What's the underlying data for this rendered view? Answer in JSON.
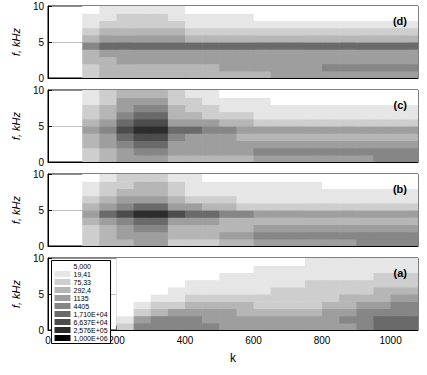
{
  "chart_data": [
    {
      "type": "heatmap",
      "title": "(d)",
      "ylabel": "f, kHz",
      "grid": true,
      "tick_labels": "y",
      "xlim": [
        0,
        1080
      ],
      "xticks": [
        0,
        200,
        400,
        600,
        800,
        1000
      ],
      "ylim": [
        0,
        10
      ],
      "yticks": [
        0,
        5,
        10
      ],
      "x": [
        25,
        75,
        125,
        175,
        225,
        275,
        325,
        375,
        425,
        475,
        525,
        575,
        625,
        675,
        725,
        775,
        825,
        875,
        925,
        975,
        1025,
        1075
      ],
      "y": [
        0.5,
        1.5,
        2.5,
        3.5,
        4.5,
        5.5,
        6.5,
        7.5,
        8.5,
        9.5
      ],
      "z": [
        [
          null,
          null,
          75.33,
          292.4,
          292.4,
          292.4,
          292.4,
          292.4,
          292.4,
          292.4,
          292.4,
          292.4,
          292.4,
          1135,
          1135,
          1135,
          1135,
          1135,
          1135,
          1135,
          1135,
          1135
        ],
        [
          null,
          null,
          75.33,
          292.4,
          292.4,
          292.4,
          292.4,
          292.4,
          292.4,
          292.4,
          1135,
          1135,
          1135,
          1135,
          1135,
          1135,
          4405,
          4405,
          4405,
          4405,
          4405,
          4405
        ],
        [
          null,
          null,
          292.4,
          292.4,
          1135,
          1135,
          1135,
          1135,
          1135,
          1135,
          1135,
          1135,
          1135,
          1135,
          1135,
          1135,
          1135,
          1135,
          1135,
          1135,
          1135,
          1135
        ],
        [
          null,
          null,
          292.4,
          1135,
          1135,
          1135,
          1135,
          1135,
          1135,
          1135,
          1135,
          1135,
          1135,
          1135,
          1135,
          1135,
          1135,
          1135,
          1135,
          1135,
          1135,
          1135
        ],
        [
          null,
          null,
          4405,
          17100,
          17100,
          17100,
          17100,
          17100,
          17100,
          17100,
          17100,
          17100,
          17100,
          17100,
          17100,
          17100,
          17100,
          17100,
          17100,
          17100,
          17100,
          17100
        ],
        [
          null,
          null,
          292.4,
          1135,
          1135,
          1135,
          1135,
          1135,
          292.4,
          292.4,
          292.4,
          292.4,
          292.4,
          292.4,
          292.4,
          292.4,
          292.4,
          292.4,
          292.4,
          292.4,
          292.4,
          292.4
        ],
        [
          null,
          null,
          75.33,
          292.4,
          292.4,
          292.4,
          292.4,
          292.4,
          75.33,
          75.33,
          75.33,
          75.33,
          75.33,
          75.33,
          75.33,
          75.33,
          75.33,
          75.33,
          75.33,
          75.33,
          75.33,
          75.33
        ],
        [
          null,
          null,
          19.41,
          75.33,
          75.33,
          75.33,
          75.33,
          75.33,
          19.41,
          19.41,
          19.41,
          19.41,
          19.41,
          19.41,
          19.41,
          19.41,
          19.41,
          19.41,
          19.41,
          19.41,
          19.41,
          19.41
        ],
        [
          null,
          null,
          19.41,
          19.41,
          75.33,
          75.33,
          75.33,
          19.41,
          19.41,
          19.41,
          19.41,
          19.41,
          5,
          5,
          5,
          5,
          5,
          5,
          5,
          5,
          5,
          5
        ],
        [
          null,
          null,
          5,
          19.41,
          19.41,
          19.41,
          19.41,
          19.41,
          5,
          5,
          5,
          5,
          5,
          5,
          5,
          5,
          5,
          5,
          5,
          5,
          5,
          5
        ]
      ]
    },
    {
      "type": "heatmap",
      "title": "(c)",
      "ylabel": "f, kHz",
      "grid": true,
      "tick_labels": "y",
      "xlim": [
        0,
        1080
      ],
      "xticks": [
        0,
        200,
        400,
        600,
        800,
        1000
      ],
      "ylim": [
        0,
        10
      ],
      "yticks": [
        0,
        5,
        10
      ],
      "x": [
        25,
        75,
        125,
        175,
        225,
        275,
        325,
        375,
        425,
        475,
        525,
        575,
        625,
        675,
        725,
        775,
        825,
        875,
        925,
        975,
        1025,
        1075
      ],
      "y": [
        0.5,
        1.5,
        2.5,
        3.5,
        4.5,
        5.5,
        6.5,
        7.5,
        8.5,
        9.5
      ],
      "z": [
        [
          null,
          null,
          75.33,
          292.4,
          1135,
          1135,
          1135,
          292.4,
          292.4,
          292.4,
          292.4,
          292.4,
          1135,
          1135,
          1135,
          1135,
          1135,
          1135,
          1135,
          4405,
          4405,
          4405
        ],
        [
          null,
          null,
          75.33,
          292.4,
          1135,
          4405,
          4405,
          1135,
          1135,
          1135,
          1135,
          1135,
          4405,
          4405,
          4405,
          4405,
          4405,
          4405,
          4405,
          4405,
          4405,
          4405
        ],
        [
          null,
          null,
          292.4,
          1135,
          4405,
          17100,
          17100,
          1135,
          1135,
          1135,
          1135,
          1135,
          1135,
          1135,
          1135,
          1135,
          1135,
          1135,
          1135,
          1135,
          1135,
          1135
        ],
        [
          null,
          null,
          292.4,
          1135,
          17100,
          66370,
          66370,
          4405,
          1135,
          1135,
          1135,
          292.4,
          292.4,
          292.4,
          292.4,
          292.4,
          292.4,
          292.4,
          292.4,
          292.4,
          292.4,
          292.4
        ],
        [
          null,
          null,
          1135,
          4405,
          66370,
          257600,
          257600,
          17100,
          17100,
          4405,
          4405,
          1135,
          1135,
          1135,
          1135,
          1135,
          1135,
          1135,
          1135,
          1135,
          1135,
          1135
        ],
        [
          null,
          null,
          292.4,
          1135,
          17100,
          66370,
          66370,
          1135,
          1135,
          1135,
          292.4,
          292.4,
          75.33,
          75.33,
          75.33,
          75.33,
          75.33,
          75.33,
          75.33,
          75.33,
          75.33,
          75.33
        ],
        [
          null,
          null,
          75.33,
          292.4,
          4405,
          17100,
          17100,
          292.4,
          292.4,
          75.33,
          75.33,
          75.33,
          19.41,
          19.41,
          19.41,
          19.41,
          19.41,
          19.41,
          19.41,
          19.41,
          19.41,
          19.41
        ],
        [
          null,
          null,
          75.33,
          292.4,
          1135,
          4405,
          4405,
          292.4,
          75.33,
          75.33,
          19.41,
          19.41,
          19.41,
          19.41,
          19.41,
          19.41,
          19.41,
          19.41,
          19.41,
          19.41,
          19.41,
          19.41
        ],
        [
          null,
          null,
          19.41,
          75.33,
          1135,
          1135,
          1135,
          75.33,
          75.33,
          19.41,
          19.41,
          19.41,
          19.41,
          5,
          5,
          5,
          5,
          5,
          5,
          5,
          5,
          5
        ],
        [
          null,
          null,
          19.41,
          75.33,
          292.4,
          292.4,
          292.4,
          75.33,
          19.41,
          19.41,
          5,
          5,
          5,
          5,
          5,
          5,
          5,
          5,
          5,
          5,
          5,
          5
        ]
      ]
    },
    {
      "type": "heatmap",
      "title": "(b)",
      "ylabel": "f, kHz",
      "grid": true,
      "tick_labels": "y",
      "xlim": [
        0,
        1080
      ],
      "xticks": [
        0,
        200,
        400,
        600,
        800,
        1000
      ],
      "ylim": [
        0,
        10
      ],
      "yticks": [
        0,
        5,
        10
      ],
      "x": [
        25,
        75,
        125,
        175,
        225,
        275,
        325,
        375,
        425,
        475,
        525,
        575,
        625,
        675,
        725,
        775,
        825,
        875,
        925,
        975,
        1025,
        1075
      ],
      "y": [
        0.5,
        1.5,
        2.5,
        3.5,
        4.5,
        5.5,
        6.5,
        7.5,
        8.5,
        9.5
      ],
      "z": [
        [
          null,
          null,
          75.33,
          292.4,
          292.4,
          1135,
          1135,
          75.33,
          75.33,
          75.33,
          292.4,
          292.4,
          1135,
          1135,
          1135,
          1135,
          1135,
          1135,
          4405,
          4405,
          4405,
          4405
        ],
        [
          null,
          null,
          75.33,
          292.4,
          1135,
          1135,
          1135,
          292.4,
          292.4,
          292.4,
          1135,
          1135,
          4405,
          4405,
          4405,
          4405,
          4405,
          4405,
          4405,
          4405,
          4405,
          4405
        ],
        [
          null,
          null,
          75.33,
          292.4,
          1135,
          4405,
          4405,
          292.4,
          292.4,
          292.4,
          292.4,
          292.4,
          1135,
          1135,
          1135,
          1135,
          1135,
          1135,
          1135,
          1135,
          1135,
          1135
        ],
        [
          null,
          null,
          292.4,
          1135,
          4405,
          17100,
          17100,
          1135,
          1135,
          1135,
          292.4,
          292.4,
          292.4,
          292.4,
          292.4,
          292.4,
          292.4,
          292.4,
          292.4,
          292.4,
          292.4,
          292.4
        ],
        [
          null,
          null,
          1135,
          17100,
          66370,
          257600,
          257600,
          66370,
          17100,
          17100,
          4405,
          4405,
          1135,
          1135,
          1135,
          1135,
          1135,
          1135,
          1135,
          1135,
          1135,
          1135
        ],
        [
          null,
          null,
          292.4,
          1135,
          4405,
          17100,
          17100,
          1135,
          1135,
          292.4,
          292.4,
          75.33,
          75.33,
          75.33,
          75.33,
          75.33,
          75.33,
          75.33,
          75.33,
          75.33,
          75.33,
          75.33
        ],
        [
          null,
          null,
          75.33,
          292.4,
          1135,
          1135,
          1135,
          292.4,
          75.33,
          75.33,
          75.33,
          19.41,
          19.41,
          19.41,
          19.41,
          19.41,
          19.41,
          19.41,
          19.41,
          19.41,
          19.41,
          19.41
        ],
        [
          null,
          null,
          19.41,
          75.33,
          292.4,
          292.4,
          292.4,
          75.33,
          19.41,
          19.41,
          19.41,
          19.41,
          19.41,
          19.41,
          19.41,
          19.41,
          19.41,
          19.41,
          19.41,
          19.41,
          19.41,
          19.41
        ],
        [
          null,
          null,
          19.41,
          75.33,
          75.33,
          292.4,
          292.4,
          75.33,
          19.41,
          19.41,
          19.41,
          19.41,
          19.41,
          19.41,
          19.41,
          19.41,
          5,
          5,
          5,
          5,
          5,
          5
        ],
        [
          null,
          null,
          5,
          19.41,
          75.33,
          75.33,
          75.33,
          19.41,
          19.41,
          5,
          5,
          5,
          5,
          5,
          5,
          5,
          5,
          5,
          5,
          5,
          5,
          5
        ]
      ]
    },
    {
      "type": "heatmap",
      "title": "(a)",
      "xlabel": "k",
      "ylabel": "f, kHz",
      "grid": true,
      "xlim": [
        0,
        1080
      ],
      "xticks": [
        0,
        200,
        400,
        600,
        800,
        1000
      ],
      "ylim": [
        0,
        10
      ],
      "yticks": [
        0,
        5,
        10
      ],
      "x": [
        25,
        75,
        125,
        175,
        225,
        275,
        325,
        375,
        425,
        475,
        525,
        575,
        625,
        675,
        725,
        775,
        825,
        875,
        925,
        975,
        1025,
        1075
      ],
      "y": [
        0.5,
        1.5,
        2.5,
        3.5,
        4.5,
        5.5,
        6.5,
        7.5,
        8.5,
        9.5
      ],
      "z": [
        [
          null,
          null,
          null,
          null,
          75.33,
          4405,
          4405,
          4405,
          4405,
          4405,
          1135,
          1135,
          1135,
          1135,
          1135,
          1135,
          1135,
          1135,
          4405,
          17100,
          17100,
          17100
        ],
        [
          null,
          null,
          null,
          null,
          19.41,
          1135,
          4405,
          4405,
          4405,
          1135,
          1135,
          1135,
          1135,
          1135,
          1135,
          1135,
          1135,
          4405,
          4405,
          17100,
          17100,
          17100
        ],
        [
          null,
          null,
          null,
          null,
          5,
          75.33,
          292.4,
          1135,
          1135,
          1135,
          1135,
          292.4,
          292.4,
          292.4,
          292.4,
          292.4,
          1135,
          1135,
          4405,
          4405,
          4405,
          4405
        ],
        [
          null,
          null,
          null,
          null,
          0,
          19.41,
          75.33,
          75.33,
          292.4,
          292.4,
          292.4,
          292.4,
          75.33,
          75.33,
          75.33,
          75.33,
          292.4,
          292.4,
          1135,
          1135,
          4405,
          4405
        ],
        [
          null,
          null,
          null,
          null,
          0,
          5,
          19.41,
          19.41,
          75.33,
          75.33,
          75.33,
          75.33,
          75.33,
          75.33,
          75.33,
          75.33,
          75.33,
          292.4,
          292.4,
          292.4,
          1135,
          1135
        ],
        [
          null,
          null,
          null,
          null,
          0,
          0,
          5,
          19.41,
          19.41,
          19.41,
          19.41,
          19.41,
          19.41,
          75.33,
          75.33,
          75.33,
          75.33,
          75.33,
          75.33,
          292.4,
          292.4,
          292.4
        ],
        [
          null,
          null,
          null,
          null,
          0,
          0,
          5,
          5,
          19.41,
          19.41,
          19.41,
          19.41,
          19.41,
          19.41,
          19.41,
          75.33,
          75.33,
          75.33,
          75.33,
          75.33,
          75.33,
          75.33
        ],
        [
          null,
          null,
          null,
          null,
          0,
          0,
          0,
          5,
          5,
          5,
          19.41,
          19.41,
          19.41,
          19.41,
          19.41,
          19.41,
          19.41,
          19.41,
          19.41,
          75.33,
          75.33,
          75.33
        ],
        [
          null,
          null,
          null,
          null,
          0,
          0,
          0,
          0,
          5,
          5,
          5,
          5,
          19.41,
          19.41,
          19.41,
          19.41,
          19.41,
          19.41,
          19.41,
          19.41,
          19.41,
          19.41
        ],
        [
          null,
          null,
          null,
          null,
          0,
          0,
          0,
          0,
          0,
          5,
          5,
          5,
          5,
          5,
          5,
          19.41,
          19.41,
          19.41,
          19.41,
          19.41,
          19.41,
          19.41
        ]
      ],
      "colorbar": {
        "levels": [
          {
            "value": 5,
            "label": "5,000"
          },
          {
            "value": 19.41,
            "label": "19,41"
          },
          {
            "value": 75.33,
            "label": "75,33"
          },
          {
            "value": 292.4,
            "label": "292,4"
          },
          1135,
          4405,
          {
            "value": 17100,
            "label": "1,710E+04"
          },
          {
            "value": 66370,
            "label": "6,637E+04"
          },
          {
            "value": 257600,
            "label": "2,576E+05"
          },
          {
            "value": 1000000,
            "label": "1,000E+06"
          }
        ],
        "colors": [
          "#ffffff",
          "#e6e6e6",
          "#cecece",
          "#b6b6b6",
          "#9e9e9e",
          "#868686",
          "#6a6a6a",
          "#4c4c4c",
          "#2c2c2c",
          "#000000"
        ]
      }
    }
  ]
}
